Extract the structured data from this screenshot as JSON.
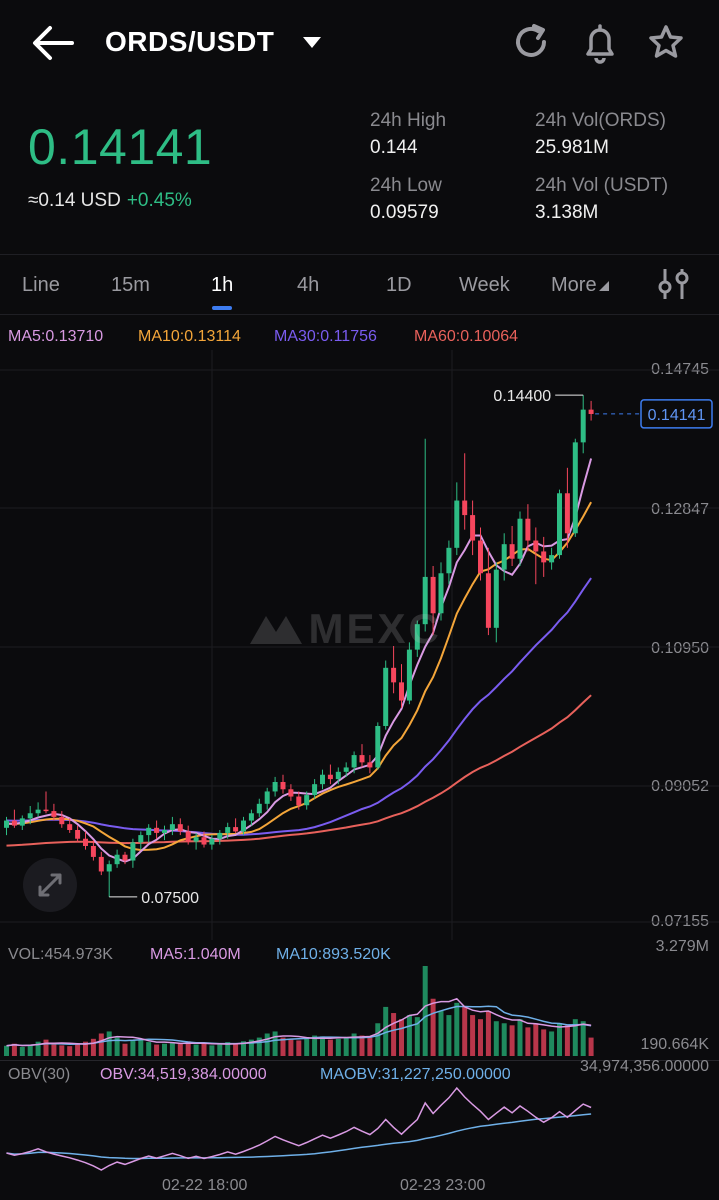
{
  "header": {
    "title": "ORDS/USDT"
  },
  "ticker": {
    "last_price": "0.14141",
    "usd_equiv": "≈0.14 USD",
    "change": "+0.45%",
    "high_label": "24h High",
    "high_value": "0.144",
    "low_label": "24h Low",
    "low_value": "0.09579",
    "vol_base_label": "24h Vol(ORDS)",
    "vol_base_value": "25.981M",
    "vol_quote_label": "24h Vol (USDT)",
    "vol_quote_value": "3.138M"
  },
  "tabs": [
    "Line",
    "15m",
    "1h",
    "4h",
    "1D",
    "Week",
    "More"
  ],
  "active_tab": "1h",
  "indicators": {
    "ma5": "MA5:0.13710",
    "ma10": "MA10:0.13114",
    "ma30": "MA30:0.11756",
    "ma60": "MA60:0.10064",
    "vol": "VOL:454.973K",
    "vol_ma5": "MA5:1.040M",
    "vol_ma10": "MA10:893.520K",
    "obv_title": "OBV(30)",
    "obv": "OBV:34,519,384.00000",
    "maobv": "MAOBV:31,227,250.00000"
  },
  "colors": {
    "up": "#2ebd85",
    "down": "#f6465d",
    "ma5": "#d99ae3",
    "ma10": "#f4a63a",
    "ma30": "#7a5cf0",
    "ma60": "#e8615b",
    "accent": "#3d7cf0"
  },
  "watermark": "MEXC",
  "chart_data": {
    "type": "candlestick",
    "interval": "1h",
    "y_ticks": [
      "0.14745",
      "0.12847",
      "0.10950",
      "0.09052",
      "0.07155"
    ],
    "ylim": [
      0.07155,
      0.14745
    ],
    "current_price": "0.14141",
    "max_label": "0.14400",
    "min_label": "0.07500",
    "x_ticks": [
      "02-22 18:00",
      "02-23 23:00"
    ],
    "vol_axis_top": "3.279M",
    "vol_axis_mid": "190.664K",
    "obv_axis_top": "34,974,356.00000",
    "candles": [
      [
        0.0845,
        0.086,
        0.0835,
        0.0855
      ],
      [
        0.0855,
        0.087,
        0.0845,
        0.0848
      ],
      [
        0.0848,
        0.0862,
        0.0842,
        0.0858
      ],
      [
        0.0858,
        0.0875,
        0.085,
        0.0865
      ],
      [
        0.0865,
        0.088,
        0.086,
        0.087
      ],
      [
        0.087,
        0.0895,
        0.0865,
        0.0868
      ],
      [
        0.0868,
        0.0878,
        0.0855,
        0.086
      ],
      [
        0.086,
        0.0868,
        0.0845,
        0.085
      ],
      [
        0.085,
        0.0858,
        0.0838,
        0.0842
      ],
      [
        0.0842,
        0.0848,
        0.0825,
        0.083
      ],
      [
        0.083,
        0.084,
        0.0815,
        0.082
      ],
      [
        0.082,
        0.0828,
        0.08,
        0.0805
      ],
      [
        0.0805,
        0.0812,
        0.078,
        0.0785
      ],
      [
        0.0785,
        0.08,
        0.075,
        0.0795
      ],
      [
        0.0795,
        0.0815,
        0.079,
        0.0808
      ],
      [
        0.0808,
        0.0812,
        0.0795,
        0.08
      ],
      [
        0.08,
        0.083,
        0.079,
        0.0825
      ],
      [
        0.0825,
        0.084,
        0.0815,
        0.0835
      ],
      [
        0.0835,
        0.085,
        0.0825,
        0.0845
      ],
      [
        0.0845,
        0.0855,
        0.083,
        0.0838
      ],
      [
        0.0838,
        0.0848,
        0.0828,
        0.0842
      ],
      [
        0.0842,
        0.086,
        0.0835,
        0.085
      ],
      [
        0.085,
        0.0858,
        0.0835,
        0.084
      ],
      [
        0.084,
        0.0848,
        0.0822,
        0.0826
      ],
      [
        0.0826,
        0.0838,
        0.0815,
        0.0832
      ],
      [
        0.0832,
        0.084,
        0.0818,
        0.0822
      ],
      [
        0.0822,
        0.0835,
        0.0815,
        0.083
      ],
      [
        0.083,
        0.0842,
        0.0822,
        0.0838
      ],
      [
        0.0838,
        0.0852,
        0.083,
        0.0846
      ],
      [
        0.0846,
        0.0858,
        0.0838,
        0.084
      ],
      [
        0.084,
        0.086,
        0.0835,
        0.0855
      ],
      [
        0.0855,
        0.087,
        0.0848,
        0.0865
      ],
      [
        0.0865,
        0.0885,
        0.086,
        0.0878
      ],
      [
        0.0878,
        0.09,
        0.087,
        0.0895
      ],
      [
        0.0895,
        0.0915,
        0.0888,
        0.0908
      ],
      [
        0.0908,
        0.0918,
        0.0892,
        0.0898
      ],
      [
        0.0898,
        0.0905,
        0.0882,
        0.0888
      ],
      [
        0.0888,
        0.0895,
        0.087,
        0.0876
      ],
      [
        0.0876,
        0.0895,
        0.087,
        0.089
      ],
      [
        0.089,
        0.0912,
        0.0885,
        0.0905
      ],
      [
        0.0905,
        0.0925,
        0.0898,
        0.0918
      ],
      [
        0.0918,
        0.0932,
        0.0905,
        0.0912
      ],
      [
        0.0912,
        0.0928,
        0.0905,
        0.0922
      ],
      [
        0.0922,
        0.0935,
        0.0915,
        0.0928
      ],
      [
        0.0928,
        0.095,
        0.092,
        0.0945
      ],
      [
        0.0945,
        0.096,
        0.0928,
        0.0935
      ],
      [
        0.0935,
        0.0945,
        0.092,
        0.0928
      ],
      [
        0.0928,
        0.099,
        0.0925,
        0.0985
      ],
      [
        0.0985,
        0.1075,
        0.098,
        0.1065
      ],
      [
        0.1065,
        0.1095,
        0.103,
        0.1045
      ],
      [
        0.1045,
        0.107,
        0.101,
        0.102
      ],
      [
        0.102,
        0.11,
        0.1015,
        0.109
      ],
      [
        0.109,
        0.113,
        0.108,
        0.1125
      ],
      [
        0.1125,
        0.138,
        0.1115,
        0.119
      ],
      [
        0.119,
        0.1205,
        0.111,
        0.114
      ],
      [
        0.114,
        0.121,
        0.113,
        0.1195
      ],
      [
        0.1195,
        0.124,
        0.118,
        0.123
      ],
      [
        0.123,
        0.132,
        0.122,
        0.1295
      ],
      [
        0.1295,
        0.136,
        0.1255,
        0.1275
      ],
      [
        0.1275,
        0.1295,
        0.122,
        0.124
      ],
      [
        0.124,
        0.1258,
        0.1185,
        0.1195
      ],
      [
        0.1195,
        0.123,
        0.111,
        0.112
      ],
      [
        0.112,
        0.121,
        0.11,
        0.12
      ],
      [
        0.12,
        0.125,
        0.1185,
        0.1235
      ],
      [
        0.1235,
        0.126,
        0.1205,
        0.1215
      ],
      [
        0.1215,
        0.128,
        0.1205,
        0.127
      ],
      [
        0.127,
        0.129,
        0.1225,
        0.124
      ],
      [
        0.124,
        0.1258,
        0.118,
        0.1225
      ],
      [
        0.1225,
        0.1245,
        0.119,
        0.121
      ],
      [
        0.121,
        0.123,
        0.12,
        0.122
      ],
      [
        0.122,
        0.131,
        0.1215,
        0.1305
      ],
      [
        0.1305,
        0.134,
        0.123,
        0.125
      ],
      [
        0.125,
        0.138,
        0.1245,
        0.1375
      ],
      [
        0.1375,
        0.144,
        0.136,
        0.142
      ],
      [
        0.142,
        0.1432,
        0.1405,
        0.1414
      ]
    ],
    "volumes": [
      0.25,
      0.3,
      0.22,
      0.28,
      0.35,
      0.4,
      0.3,
      0.26,
      0.24,
      0.3,
      0.35,
      0.42,
      0.55,
      0.6,
      0.45,
      0.3,
      0.38,
      0.4,
      0.34,
      0.28,
      0.3,
      0.32,
      0.3,
      0.36,
      0.28,
      0.3,
      0.26,
      0.28,
      0.34,
      0.3,
      0.36,
      0.4,
      0.45,
      0.55,
      0.6,
      0.45,
      0.4,
      0.38,
      0.42,
      0.5,
      0.48,
      0.4,
      0.42,
      0.46,
      0.55,
      0.5,
      0.45,
      0.8,
      1.2,
      1.05,
      0.9,
      1.0,
      0.95,
      2.2,
      1.4,
      1.1,
      1.0,
      1.3,
      1.2,
      1.0,
      0.9,
      1.1,
      0.85,
      0.8,
      0.75,
      0.9,
      0.7,
      0.8,
      0.65,
      0.6,
      0.8,
      0.75,
      0.9,
      0.85,
      0.45
    ]
  }
}
